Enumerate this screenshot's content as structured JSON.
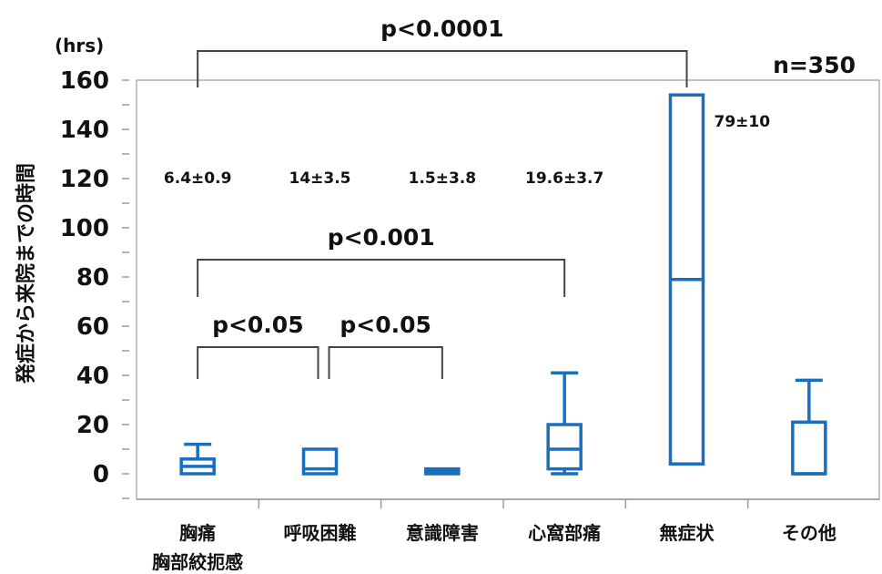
{
  "chart_data": {
    "type": "boxplot",
    "sample_size": "n=350",
    "y_unit": "(hrs)",
    "ylabel": "発症から来院までの時間",
    "ylim": [
      0,
      160
    ],
    "y_ticks": [
      "0",
      "20",
      "40",
      "60",
      "80",
      "100",
      "120",
      "140",
      "160"
    ],
    "box_color": "#1a6fbd",
    "categories": [
      {
        "label_lines": [
          "胸痛",
          "胸部絞扼感"
        ],
        "annotation": "6.4±0.9",
        "whisker_low": 0,
        "q1": 0,
        "median": 3,
        "q3": 6,
        "whisker_high": 12
      },
      {
        "label_lines": [
          "呼吸困難"
        ],
        "annotation": "14±3.5",
        "whisker_low": 0,
        "q1": 0,
        "median": 2,
        "q3": 10,
        "whisker_high": 10
      },
      {
        "label_lines": [
          "意識障害"
        ],
        "annotation": "1.5±3.8",
        "whisker_low": 0,
        "q1": 0,
        "median": 1,
        "q3": 2,
        "whisker_high": 2
      },
      {
        "label_lines": [
          "心窩部痛"
        ],
        "annotation": "19.6±3.7",
        "whisker_low": 0,
        "q1": 2,
        "median": 10,
        "q3": 20,
        "whisker_high": 41
      },
      {
        "label_lines": [
          "無症状"
        ],
        "annotation": "79±10",
        "whisker_low": 4,
        "q1": 4,
        "median": 79,
        "q3": 154,
        "whisker_high": 154
      },
      {
        "label_lines": [
          "その他"
        ],
        "annotation": "",
        "whisker_low": 0,
        "q1": 0,
        "median": 0,
        "q3": 21,
        "whisker_high": 38
      }
    ],
    "comparisons": [
      {
        "from": 0,
        "to": 4,
        "label": "p<0.0001"
      },
      {
        "from": 0,
        "to": 3,
        "label": "p<0.001"
      },
      {
        "from": 0,
        "to": 1,
        "label": "p<0.05"
      },
      {
        "from": 1,
        "to": 2,
        "label": "p<0.05"
      }
    ]
  }
}
